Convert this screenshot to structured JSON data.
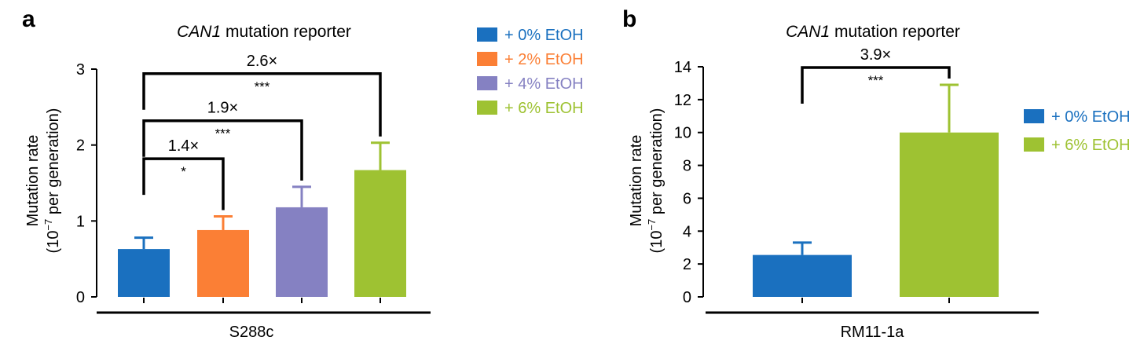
{
  "chart_data": [
    {
      "panel_label": "a",
      "type": "bar",
      "title_italic": "CAN1",
      "title_rest": " mutation reporter",
      "ylabel_line1": "Mutation rate",
      "ylabel_line2_pre": "(10",
      "ylabel_line2_sup": "−7",
      "ylabel_line2_post": " per generation)",
      "group_label": "S288c",
      "ylim": [
        0,
        3
      ],
      "yticks": [
        "0",
        "1",
        "2",
        "3"
      ],
      "series": [
        {
          "name": "+ 0% EtOH",
          "value": 0.63,
          "error": 0.15,
          "color": "#1a70bf"
        },
        {
          "name": "+ 2% EtOH",
          "value": 0.88,
          "error": 0.18,
          "color": "#fb7f35"
        },
        {
          "name": "+ 4% EtOH",
          "value": 1.18,
          "error": 0.27,
          "color": "#8581c2"
        },
        {
          "name": "+ 6% EtOH",
          "value": 1.67,
          "error": 0.36,
          "color": "#9ec232"
        }
      ],
      "comparisons": [
        {
          "from": 0,
          "to": 1,
          "fold": "1.4×",
          "sig": "*",
          "y": 1.82
        },
        {
          "from": 0,
          "to": 2,
          "fold": "1.9×",
          "sig": "***",
          "y": 2.32
        },
        {
          "from": 0,
          "to": 3,
          "fold": "2.6×",
          "sig": "***",
          "y": 2.94
        }
      ],
      "legend_position": "right"
    },
    {
      "panel_label": "b",
      "type": "bar",
      "title_italic": "CAN1",
      "title_rest": " mutation reporter",
      "ylabel_line1": "Mutation rate",
      "ylabel_line2_pre": "(10",
      "ylabel_line2_sup": "−7",
      "ylabel_line2_post": " per generation)",
      "group_label": "RM11-1a",
      "ylim": [
        0,
        14
      ],
      "yticks": [
        "0",
        "2",
        "4",
        "6",
        "8",
        "10",
        "12",
        "14"
      ],
      "series": [
        {
          "name": "+ 0% EtOH",
          "value": 2.55,
          "error": 0.75,
          "color": "#1a70bf"
        },
        {
          "name": "+ 6% EtOH",
          "value": 10.0,
          "error": 2.9,
          "color": "#9ec232"
        }
      ],
      "comparisons": [
        {
          "from": 0,
          "to": 1,
          "fold": "3.9×",
          "sig": "***",
          "y": 13.95
        }
      ],
      "legend_position": "right"
    }
  ]
}
